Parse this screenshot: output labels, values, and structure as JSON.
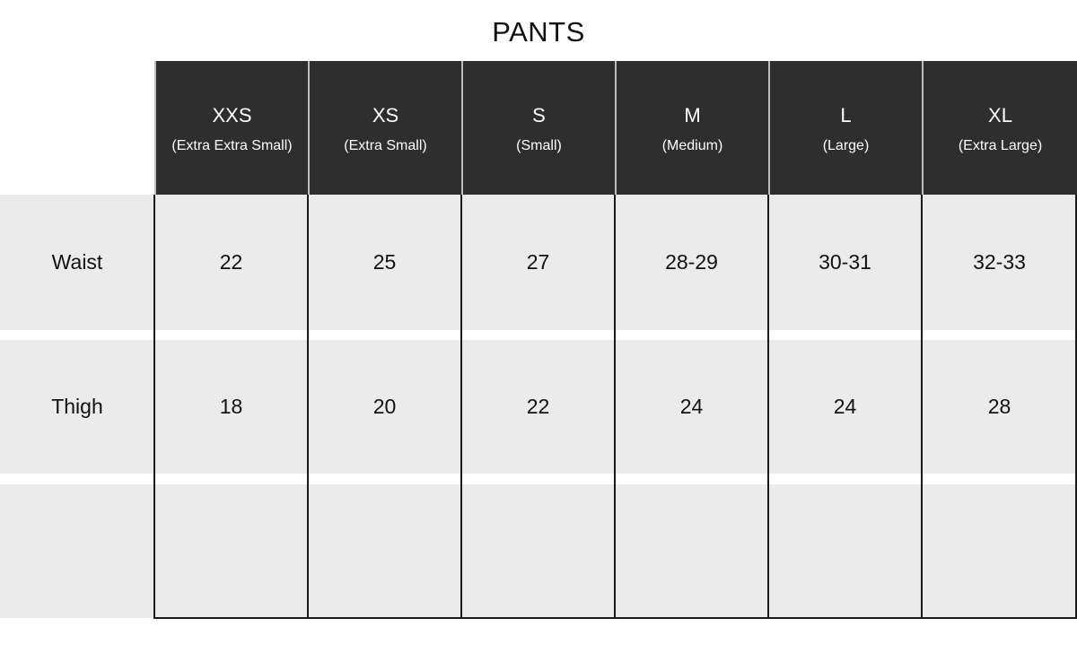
{
  "title": "PANTS",
  "columns": [
    {
      "code": "XXS",
      "desc": "(Extra Extra Small)"
    },
    {
      "code": "XS",
      "desc": "(Extra Small)"
    },
    {
      "code": "S",
      "desc": "(Small)"
    },
    {
      "code": "M",
      "desc": "(Medium)"
    },
    {
      "code": "L",
      "desc": "(Large)"
    },
    {
      "code": "XL",
      "desc": "(Extra Large)"
    }
  ],
  "rows": [
    {
      "label": "Waist",
      "values": [
        "22",
        "25",
        "27",
        "28-29",
        "30-31",
        "32-33"
      ]
    },
    {
      "label": "Thigh",
      "values": [
        "18",
        "20",
        "22",
        "24",
        "24",
        "28"
      ]
    },
    {
      "label": "",
      "values": [
        "",
        "",
        "",
        "",
        "",
        ""
      ]
    }
  ],
  "colors": {
    "header_bg": "#2e2e2e",
    "row_bg": "#ebebeb",
    "grid": "#1a1a1a"
  }
}
